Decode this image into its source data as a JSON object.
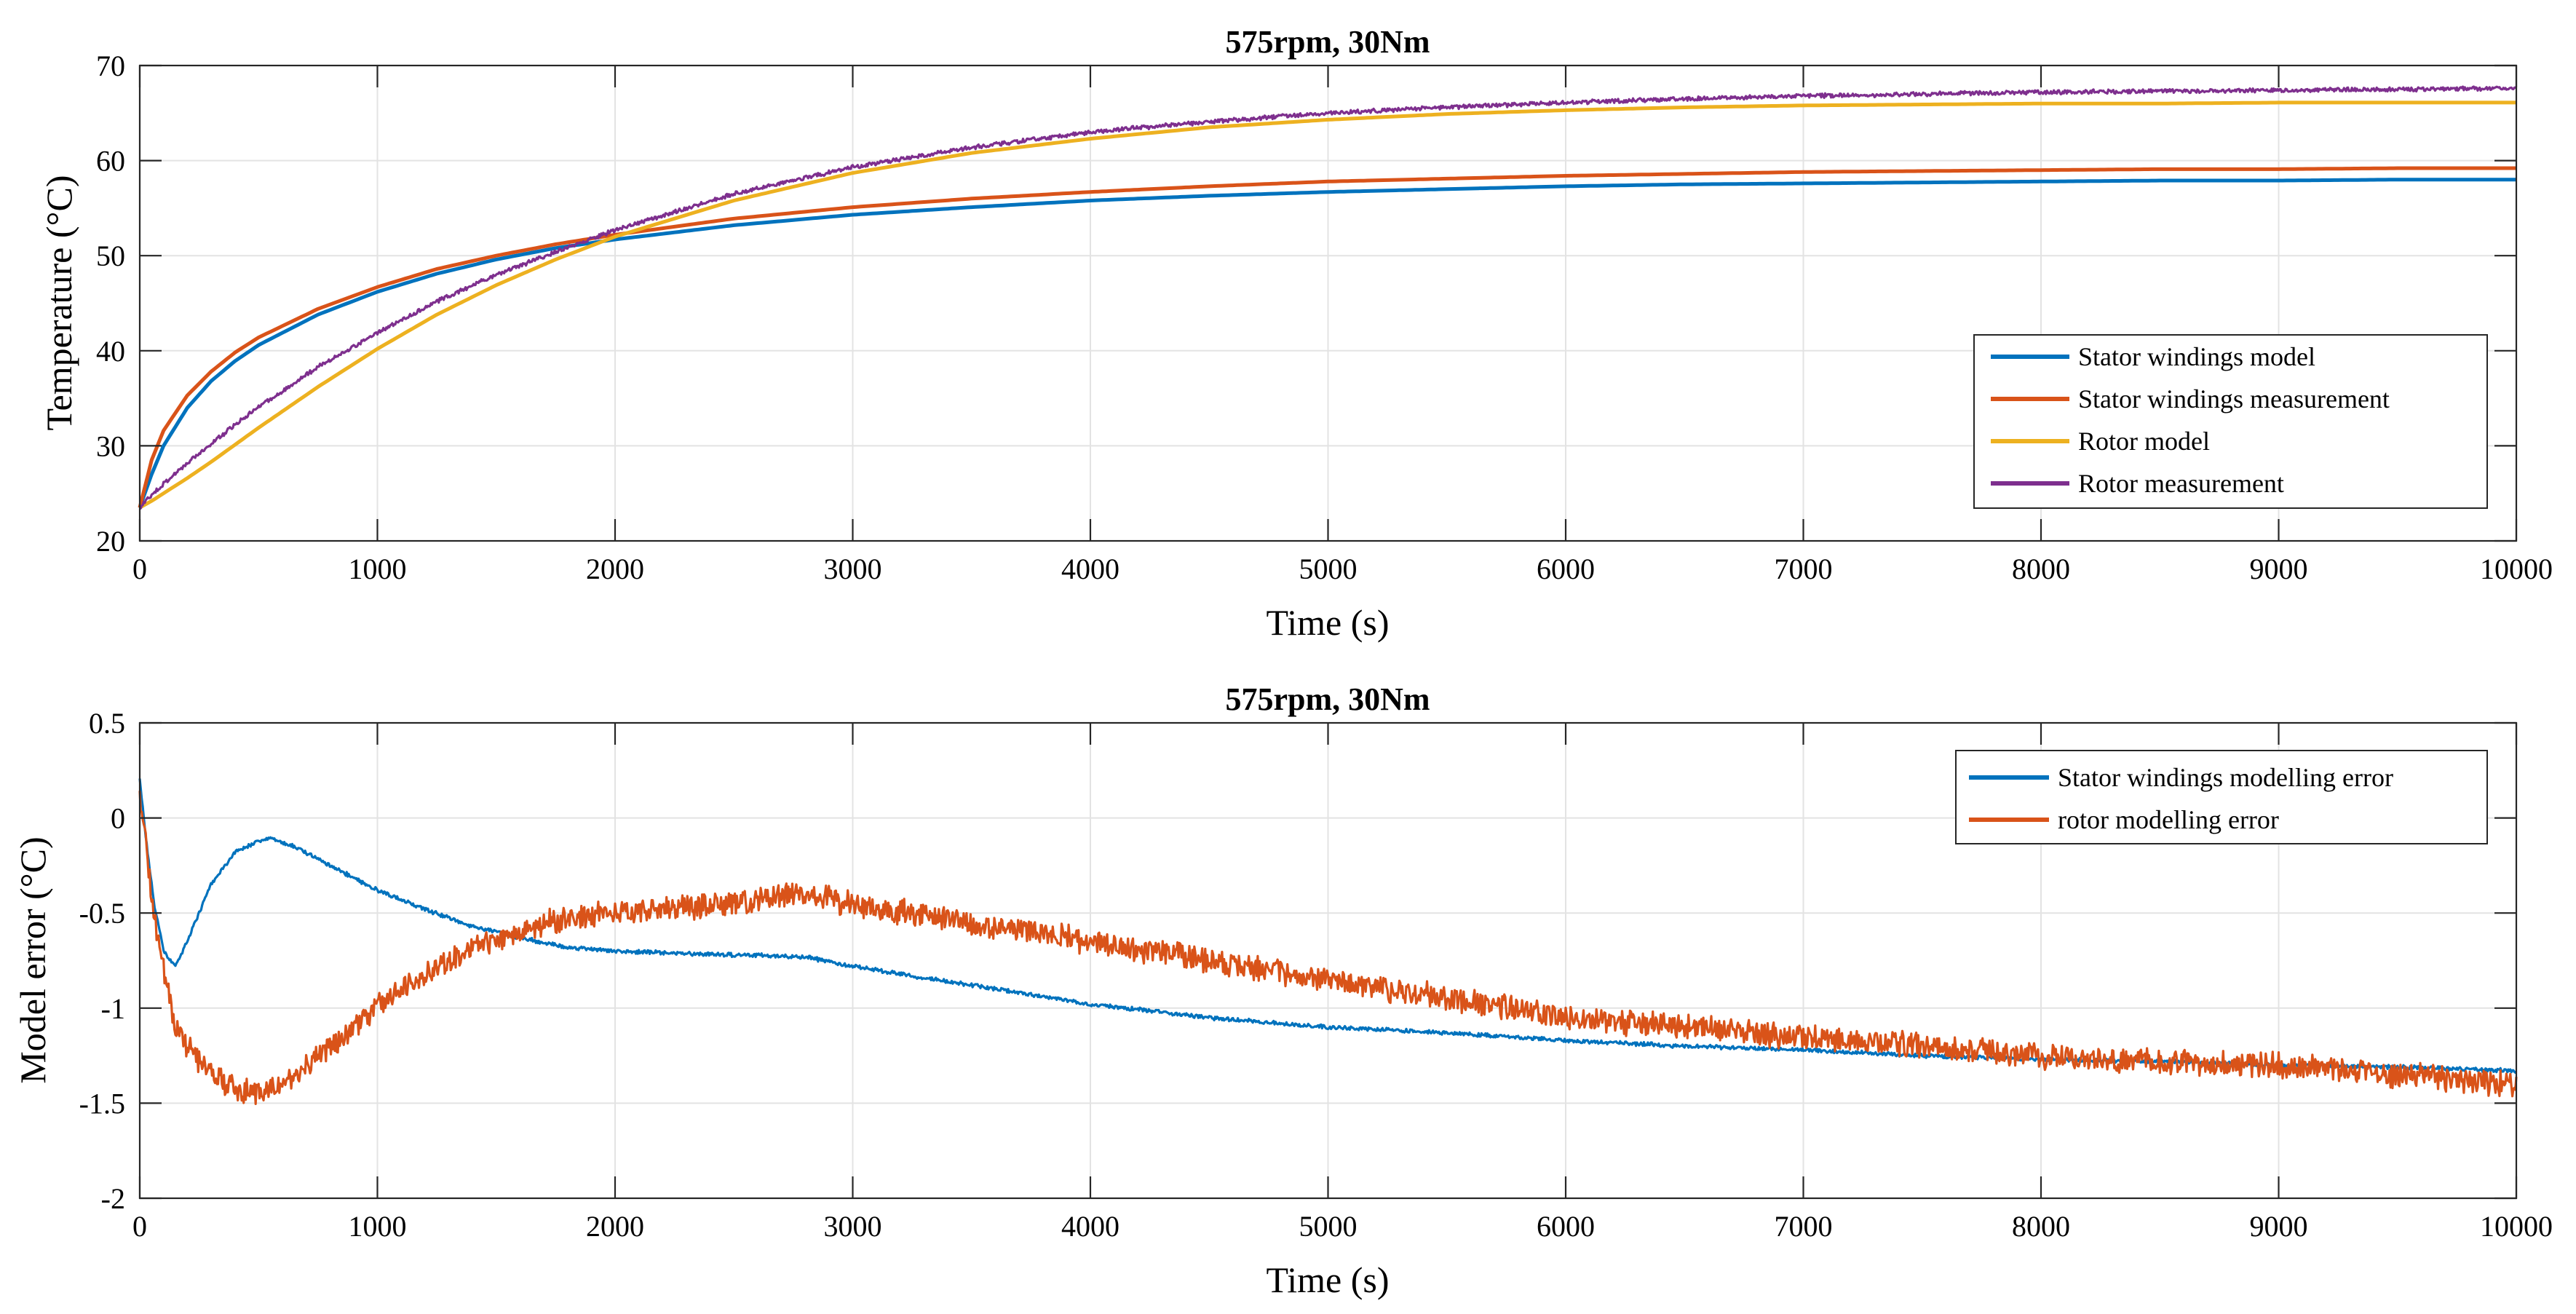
{
  "chart_data": [
    {
      "type": "line",
      "title": "575rpm, 30Nm",
      "xlabel": "Time (s)",
      "ylabel": "Temperature (°C)",
      "xlim": [
        0,
        10000
      ],
      "ylim": [
        20,
        70
      ],
      "xticks": [
        0,
        1000,
        2000,
        3000,
        4000,
        5000,
        6000,
        7000,
        8000,
        9000,
        10000
      ],
      "yticks": [
        20,
        30,
        40,
        50,
        60,
        70
      ],
      "grid": true,
      "legend_position": "right",
      "x": [
        0,
        50,
        100,
        200,
        300,
        400,
        500,
        750,
        1000,
        1250,
        1500,
        1750,
        2000,
        2500,
        3000,
        3500,
        4000,
        4500,
        5000,
        5500,
        6000,
        6500,
        7000,
        7500,
        8000,
        8500,
        9000,
        9500,
        10000
      ],
      "series": [
        {
          "name": "Stator windings model",
          "color": "#0072BD",
          "noise": 0,
          "values": [
            23.5,
            27.0,
            30.0,
            34.0,
            36.8,
            38.9,
            40.6,
            43.8,
            46.2,
            48.1,
            49.6,
            50.8,
            51.7,
            53.2,
            54.3,
            55.1,
            55.8,
            56.3,
            56.7,
            57.0,
            57.3,
            57.5,
            57.6,
            57.7,
            57.8,
            57.9,
            57.9,
            58.0,
            58.0
          ]
        },
        {
          "name": "Stator windings measurement",
          "color": "#D95319",
          "noise": 0,
          "values": [
            23.5,
            28.5,
            31.6,
            35.3,
            37.8,
            39.8,
            41.4,
            44.4,
            46.7,
            48.6,
            50.0,
            51.2,
            52.2,
            53.9,
            55.1,
            56.0,
            56.7,
            57.3,
            57.8,
            58.1,
            58.4,
            58.6,
            58.8,
            58.9,
            59.0,
            59.1,
            59.1,
            59.2,
            59.2
          ]
        },
        {
          "name": "Rotor model",
          "color": "#EDB120",
          "noise": 0,
          "values": [
            23.5,
            24.2,
            25.0,
            26.6,
            28.3,
            30.1,
            31.9,
            36.2,
            40.2,
            43.8,
            46.9,
            49.6,
            52.0,
            55.8,
            58.7,
            60.8,
            62.3,
            63.5,
            64.3,
            64.9,
            65.3,
            65.6,
            65.8,
            65.9,
            66.0,
            66.0,
            66.1,
            66.1,
            66.1
          ]
        },
        {
          "name": "Rotor measurement",
          "color": "#7E2F8E",
          "noise": 0.25,
          "values": [
            23.5,
            24.8,
            26.0,
            28.2,
            30.2,
            32.2,
            34.1,
            38.3,
            41.9,
            45.2,
            48.0,
            50.4,
            52.7,
            56.5,
            59.3,
            61.4,
            63.0,
            64.1,
            65.0,
            65.6,
            66.1,
            66.5,
            66.8,
            67.0,
            67.2,
            67.3,
            67.4,
            67.5,
            67.6
          ]
        }
      ]
    },
    {
      "type": "line",
      "title": "575rpm, 30Nm",
      "xlabel": "Time (s)",
      "ylabel": "Model error (°C)",
      "xlim": [
        0,
        10000
      ],
      "ylim": [
        -2,
        0.5
      ],
      "xticks": [
        0,
        1000,
        2000,
        3000,
        4000,
        5000,
        6000,
        7000,
        8000,
        9000,
        10000
      ],
      "yticks": [
        -2,
        -1.5,
        -1,
        -0.5,
        0,
        0.5
      ],
      "grid": true,
      "legend_position": "top-right",
      "series": [
        {
          "name": "Stator windings modelling error",
          "color": "#0072BD",
          "noise": 0.012,
          "x": [
            0,
            30,
            60,
            100,
            150,
            200,
            300,
            400,
            500,
            550,
            650,
            800,
            1000,
            1200,
            1400,
            1600,
            1800,
            2000,
            2500,
            2800,
            3000,
            3500,
            4000,
            4500,
            5000,
            5500,
            6000,
            6500,
            7000,
            7500,
            8000,
            8500,
            9000,
            9500,
            10000
          ],
          "values": [
            0.2,
            -0.15,
            -0.45,
            -0.7,
            -0.78,
            -0.65,
            -0.35,
            -0.18,
            -0.12,
            -0.11,
            -0.15,
            -0.25,
            -0.38,
            -0.48,
            -0.57,
            -0.63,
            -0.68,
            -0.7,
            -0.72,
            -0.73,
            -0.78,
            -0.88,
            -0.98,
            -1.05,
            -1.1,
            -1.13,
            -1.17,
            -1.2,
            -1.22,
            -1.25,
            -1.27,
            -1.28,
            -1.3,
            -1.31,
            -1.33
          ]
        },
        {
          "name": "rotor modelling error",
          "color": "#D95319",
          "noise": 0.075,
          "x": [
            0,
            30,
            60,
            100,
            150,
            200,
            300,
            400,
            500,
            600,
            700,
            900,
            1100,
            1300,
            1500,
            1700,
            2000,
            2500,
            2800,
            3000,
            3500,
            4000,
            4500,
            5000,
            5500,
            6000,
            6500,
            7000,
            7500,
            8000,
            8500,
            9000,
            9500,
            10000
          ],
          "values": [
            0.1,
            -0.2,
            -0.5,
            -0.8,
            -1.1,
            -1.2,
            -1.35,
            -1.42,
            -1.45,
            -1.4,
            -1.3,
            -1.1,
            -0.9,
            -0.75,
            -0.65,
            -0.55,
            -0.5,
            -0.45,
            -0.4,
            -0.45,
            -0.55,
            -0.65,
            -0.75,
            -0.85,
            -0.95,
            -1.05,
            -1.1,
            -1.15,
            -1.2,
            -1.25,
            -1.28,
            -1.3,
            -1.35,
            -1.4
          ]
        }
      ]
    }
  ]
}
